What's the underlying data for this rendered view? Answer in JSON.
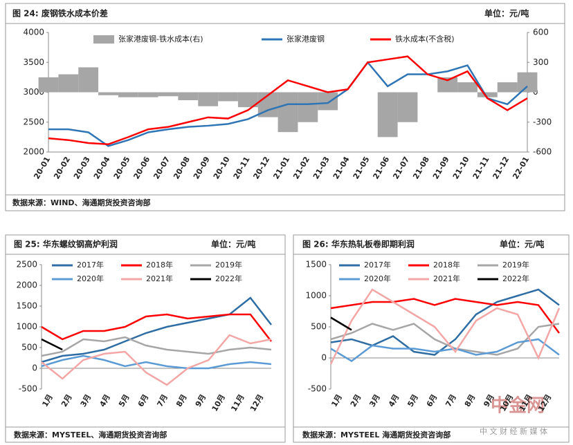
{
  "chart_data": [
    {
      "type": "line",
      "title": "图 24:  废钢铁水成本价差",
      "unit": "单位：元/吨",
      "source": "数据来源：WIND、海通期货投资咨询部",
      "categories": [
        "20-01",
        "20-02",
        "20-03",
        "20-04",
        "20-05",
        "20-06",
        "20-07",
        "20-08",
        "20-09",
        "20-10",
        "20-11",
        "20-12",
        "21-01",
        "21-02",
        "21-03",
        "21-04",
        "21-05",
        "21-06",
        "21-07",
        "21-08",
        "21-09",
        "21-10",
        "21-11",
        "21-12",
        "22-01"
      ],
      "ylim": [
        2000,
        4000
      ],
      "yticks": [
        2000,
        2500,
        3000,
        3500,
        4000
      ],
      "y2lim": [
        -600,
        600
      ],
      "y2ticks": [
        -600,
        -300,
        0,
        300,
        600
      ],
      "series": [
        {
          "name": "张家港废钢-铁水成本(右)",
          "color": "#a6a6a6",
          "axis": "y2",
          "kind": "bar",
          "values": [
            150,
            180,
            250,
            -30,
            -50,
            -50,
            -40,
            -80,
            -140,
            -90,
            -150,
            -250,
            -400,
            -300,
            -180,
            0,
            0,
            -450,
            -300,
            0,
            150,
            100,
            -50,
            100,
            200
          ]
        },
        {
          "name": "张家港废钢",
          "color": "#2e75b6",
          "values": [
            2380,
            2380,
            2330,
            2100,
            2200,
            2330,
            2380,
            2420,
            2440,
            2470,
            2550,
            2700,
            2800,
            2800,
            2820,
            3050,
            3500,
            3100,
            3300,
            3300,
            3350,
            3450,
            2900,
            2800,
            3100
          ]
        },
        {
          "name": "铁水成本(不含税)",
          "color": "#ff0000",
          "values": [
            2230,
            2200,
            2150,
            2130,
            2250,
            2380,
            2420,
            2500,
            2580,
            2560,
            2700,
            2950,
            3200,
            3100,
            3000,
            3050,
            3500,
            3550,
            3600,
            3300,
            3200,
            3350,
            2900,
            2700,
            2900
          ]
        }
      ]
    },
    {
      "type": "line",
      "title": "图 25:  华东螺纹钢高炉利润",
      "unit": "单位：元/吨",
      "source": "数据来源：MYSTEEL、海通期货投资咨询部",
      "categories": [
        "1月",
        "2月",
        "3月",
        "4月",
        "5月",
        "6月",
        "7月",
        "8月",
        "9月",
        "10月",
        "11月",
        "12月"
      ],
      "ylim": [
        -500,
        2500
      ],
      "yticks": [
        -500,
        0,
        500,
        1000,
        1500,
        2000,
        2500
      ],
      "series": [
        {
          "name": "2017年",
          "color": "#2e6da4",
          "values": [
            150,
            300,
            350,
            450,
            650,
            850,
            1000,
            1100,
            1200,
            1300,
            1700,
            1050
          ]
        },
        {
          "name": "2018年",
          "color": "#ff0000",
          "values": [
            1000,
            700,
            900,
            900,
            1000,
            1250,
            1300,
            1200,
            1250,
            1300,
            1300,
            650
          ]
        },
        {
          "name": "2019年",
          "color": "#a6a6a6",
          "values": [
            300,
            400,
            700,
            650,
            750,
            550,
            450,
            400,
            350,
            450,
            500,
            450
          ]
        },
        {
          "name": "2020年",
          "color": "#5b9bd5",
          "values": [
            50,
            200,
            300,
            200,
            50,
            150,
            50,
            0,
            0,
            100,
            150,
            100
          ]
        },
        {
          "name": "2021年",
          "color": "#f4a6a6",
          "values": [
            150,
            -250,
            200,
            350,
            400,
            -100,
            -400,
            0,
            200,
            800,
            600,
            700
          ]
        },
        {
          "name": "2022年",
          "color": "#000000",
          "values": [
            700,
            450,
            null,
            null,
            null,
            null,
            null,
            null,
            null,
            null,
            null,
            null
          ]
        }
      ]
    },
    {
      "type": "line",
      "title": "图 26:  华东热轧板卷即期利润",
      "unit": "单位：元/吨",
      "source": "数据来源：MYSTEEL 海通期货投资咨询部",
      "categories": [
        "1月",
        "2月",
        "3月",
        "4月",
        "5月",
        "6月",
        "7月",
        "8月",
        "9月",
        "10月",
        "11月",
        "12月"
      ],
      "ylim": [
        -500,
        1500
      ],
      "yticks": [
        -500,
        0,
        500,
        1000,
        1500
      ],
      "series": [
        {
          "name": "2017年",
          "color": "#2e6da4",
          "values": [
            250,
            300,
            200,
            350,
            100,
            50,
            300,
            700,
            900,
            1000,
            1100,
            850
          ]
        },
        {
          "name": "2018年",
          "color": "#ff0000",
          "values": [
            800,
            850,
            900,
            900,
            950,
            850,
            950,
            900,
            850,
            900,
            850,
            400
          ]
        },
        {
          "name": "2019年",
          "color": "#a6a6a6",
          "values": [
            300,
            400,
            550,
            450,
            550,
            300,
            150,
            100,
            50,
            150,
            500,
            550
          ]
        },
        {
          "name": "2020年",
          "color": "#5b9bd5",
          "values": [
            150,
            -50,
            200,
            150,
            150,
            100,
            150,
            50,
            100,
            250,
            300,
            50
          ]
        },
        {
          "name": "2021年",
          "color": "#f4a6a6",
          "values": [
            -100,
            600,
            1100,
            900,
            700,
            500,
            100,
            600,
            800,
            700,
            0,
            800
          ]
        },
        {
          "name": "2022年",
          "color": "#000000",
          "values": [
            650,
            450,
            null,
            null,
            null,
            null,
            null,
            null,
            null,
            null,
            null,
            null
          ]
        }
      ]
    }
  ],
  "watermark": {
    "brand": "中金网",
    "tagline": "中 文 财 经 新 媒 体"
  }
}
